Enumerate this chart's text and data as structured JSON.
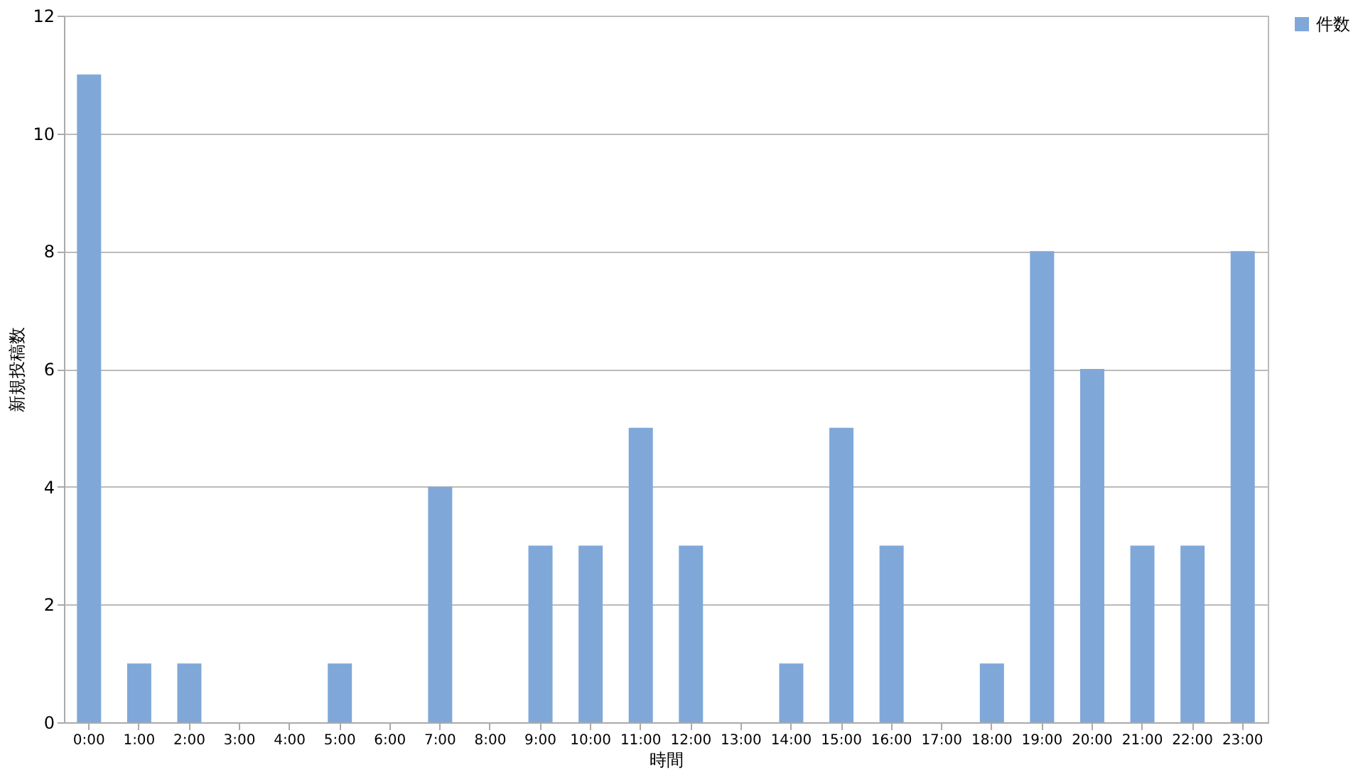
{
  "chart_data": {
    "type": "bar",
    "xlabel": "時間",
    "ylabel": "新規投稿数",
    "categories": [
      "0:00",
      "1:00",
      "2:00",
      "3:00",
      "4:00",
      "5:00",
      "6:00",
      "7:00",
      "8:00",
      "9:00",
      "10:00",
      "11:00",
      "12:00",
      "13:00",
      "14:00",
      "15:00",
      "16:00",
      "17:00",
      "18:00",
      "19:00",
      "20:00",
      "21:00",
      "22:00",
      "23:00"
    ],
    "series": [
      {
        "name": "件数",
        "color": "#7fa8d9",
        "values": [
          11,
          1,
          1,
          0,
          0,
          1,
          0,
          4,
          0,
          3,
          3,
          5,
          3,
          0,
          1,
          5,
          3,
          0,
          1,
          8,
          6,
          3,
          3,
          8
        ]
      }
    ],
    "ylim": [
      0,
      12
    ],
    "yticks": [
      0,
      2,
      4,
      6,
      8,
      10,
      12
    ],
    "grid": "y",
    "legend": "right"
  }
}
